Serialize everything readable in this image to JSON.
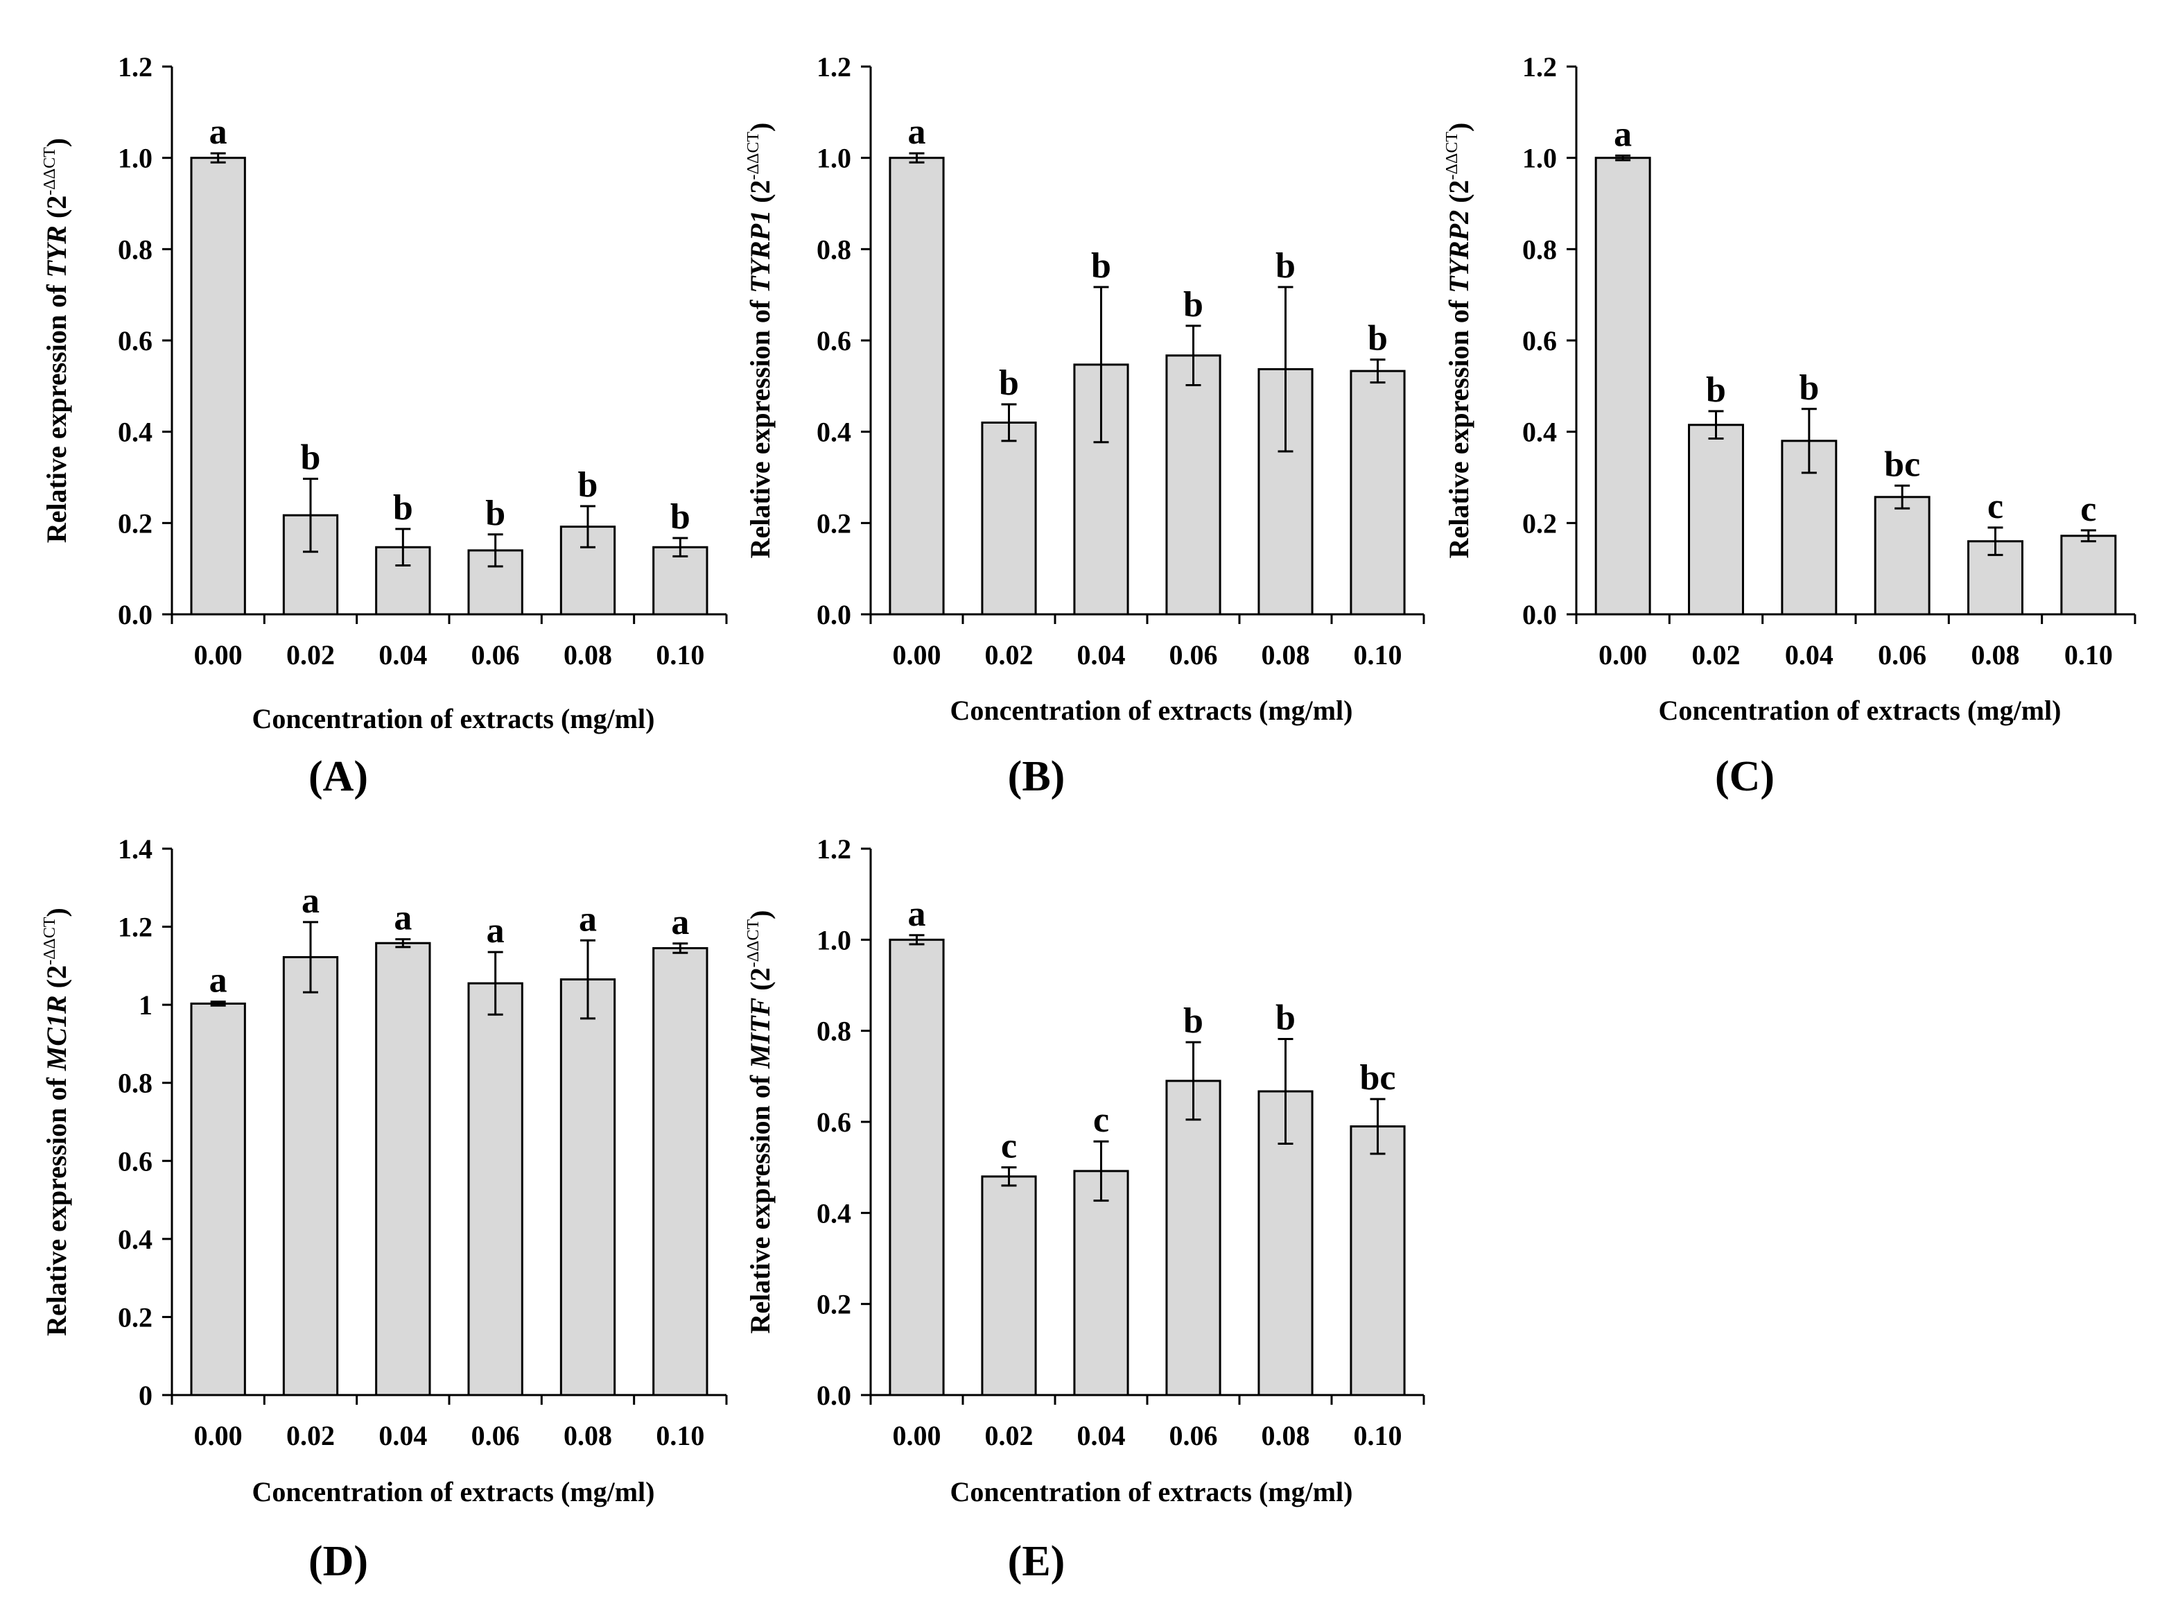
{
  "colors": {
    "bar_fill": "#d9d9d9",
    "stroke": "#000000"
  },
  "chart_data": [
    {
      "type": "bar",
      "panel_label": "(A)",
      "gene": "TYR",
      "ylabel_prefix": "Relative expression of ",
      "ylabel_suffix": " (2",
      "ylabel_sup": "-ΔΔCT",
      "ylabel_close": ")",
      "xlabel": "Concentration of extracts (mg/ml)",
      "categories": [
        "0.00",
        "0.02",
        "0.04",
        "0.06",
        "0.08",
        "0.10"
      ],
      "values": [
        1.0,
        0.217,
        0.147,
        0.14,
        0.192,
        0.147
      ],
      "errors": [
        0.01,
        0.08,
        0.04,
        0.035,
        0.045,
        0.02
      ],
      "significance": [
        "a",
        "b",
        "b",
        "b",
        "b",
        "b"
      ],
      "ylim": [
        0,
        1.2
      ],
      "yticks": [
        "0.0",
        "0.2",
        "0.4",
        "0.6",
        "0.8",
        "1.0",
        "1.2"
      ]
    },
    {
      "type": "bar",
      "panel_label": "(B)",
      "gene": "TYRP1",
      "ylabel_prefix": "Relative expression of ",
      "ylabel_suffix": " (2",
      "ylabel_sup": "-ΔΔCT",
      "ylabel_close": ")",
      "xlabel": "Concentration of extracts (mg/ml)",
      "categories": [
        "0.00",
        "0.02",
        "0.04",
        "0.06",
        "0.08",
        "0.10"
      ],
      "values": [
        1.0,
        0.42,
        0.547,
        0.567,
        0.537,
        0.533
      ],
      "errors": [
        0.01,
        0.04,
        0.17,
        0.065,
        0.18,
        0.025
      ],
      "significance": [
        "a",
        "b",
        "b",
        "b",
        "b",
        "b"
      ],
      "ylim": [
        0,
        1.2
      ],
      "yticks": [
        "0.0",
        "0.2",
        "0.4",
        "0.6",
        "0.8",
        "1.0",
        "1.2"
      ]
    },
    {
      "type": "bar",
      "panel_label": "(C)",
      "gene": "TYRP2",
      "ylabel_prefix": "Relative expression of ",
      "ylabel_suffix": " (2",
      "ylabel_sup": "-ΔΔCT",
      "ylabel_close": ")",
      "xlabel": "Concentration of extracts (mg/ml)",
      "categories": [
        "0.00",
        "0.02",
        "0.04",
        "0.06",
        "0.08",
        "0.10"
      ],
      "values": [
        1.0,
        0.415,
        0.38,
        0.257,
        0.16,
        0.172
      ],
      "errors": [
        0.005,
        0.03,
        0.07,
        0.025,
        0.03,
        0.012
      ],
      "significance": [
        "a",
        "b",
        "b",
        "bc",
        "c",
        "c"
      ],
      "ylim": [
        0,
        1.2
      ],
      "yticks": [
        "0.0",
        "0.2",
        "0.4",
        "0.6",
        "0.8",
        "1.0",
        "1.2"
      ]
    },
    {
      "type": "bar",
      "panel_label": "(D)",
      "gene": "MC1R",
      "ylabel_prefix": "Relative expression  of ",
      "ylabel_suffix": " (2",
      "ylabel_sup": "-ΔΔCT",
      "ylabel_close": ")",
      "xlabel": "Concentration  of extracts (mg/ml)",
      "categories": [
        "0.00",
        "0.02",
        "0.04",
        "0.06",
        "0.08",
        "0.10"
      ],
      "values": [
        1.003,
        1.122,
        1.158,
        1.055,
        1.065,
        1.145
      ],
      "errors": [
        0.005,
        0.09,
        0.01,
        0.08,
        0.1,
        0.012
      ],
      "significance": [
        "a",
        "a",
        "a",
        "a",
        "a",
        "a"
      ],
      "ylim": [
        0,
        1.4
      ],
      "yticks": [
        "0",
        "0.2",
        "0.4",
        "0.6",
        "0.8",
        "1",
        "1.2",
        "1.4"
      ]
    },
    {
      "type": "bar",
      "panel_label": "(E)",
      "gene": "MITF",
      "ylabel_prefix": "Relative expression of ",
      "ylabel_suffix": " (2",
      "ylabel_sup": "-ΔΔCT",
      "ylabel_close": ")",
      "xlabel": "Concentration of extracts (mg/ml)",
      "categories": [
        "0.00",
        "0.02",
        "0.04",
        "0.06",
        "0.08",
        "0.10"
      ],
      "values": [
        1.0,
        0.48,
        0.492,
        0.69,
        0.667,
        0.59
      ],
      "errors": [
        0.01,
        0.02,
        0.065,
        0.085,
        0.115,
        0.06
      ],
      "significance": [
        "a",
        "c",
        "c",
        "b",
        "b",
        "bc"
      ],
      "ylim": [
        0,
        1.2
      ],
      "yticks": [
        "0.0",
        "0.2",
        "0.4",
        "0.6",
        "0.8",
        "1.0",
        "1.2"
      ]
    }
  ]
}
